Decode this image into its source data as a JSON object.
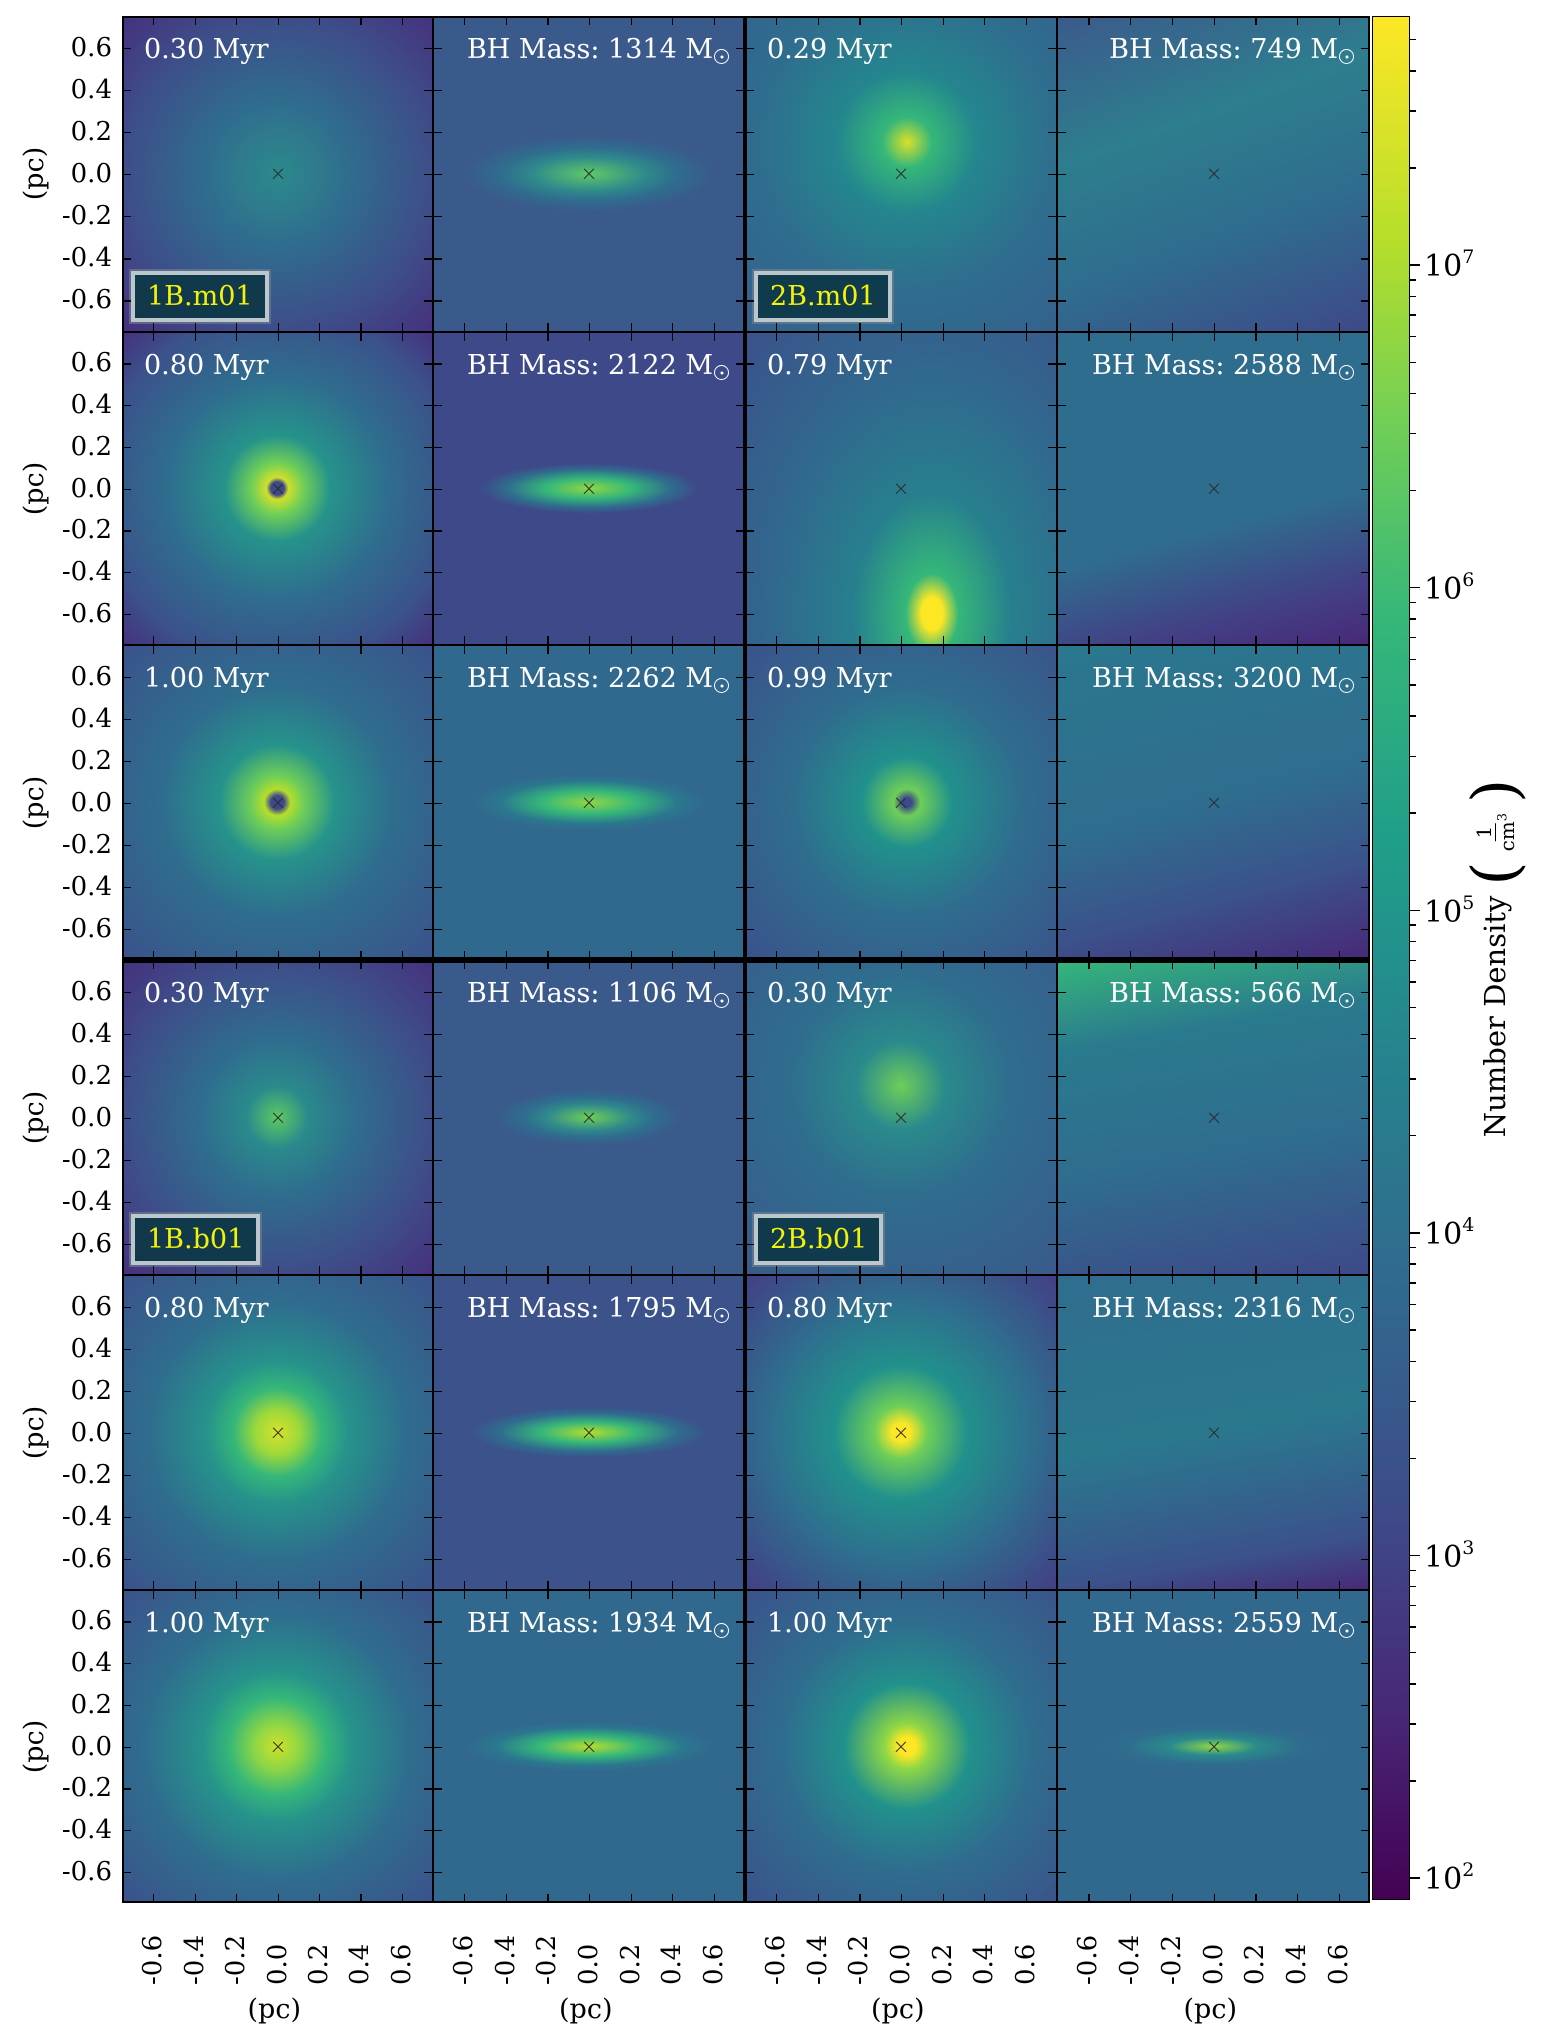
{
  "figure": {
    "panels": [
      [
        {
          "label": "0.30 Myr",
          "kind": "time",
          "sim": "1B.m01"
        },
        {
          "label": "BH Mass: 1314 M",
          "kind": "mass"
        },
        {
          "label": "0.29 Myr",
          "kind": "time",
          "sim": "2B.m01"
        },
        {
          "label": "BH Mass: 749 M",
          "kind": "mass"
        }
      ],
      [
        {
          "label": "0.80 Myr",
          "kind": "time"
        },
        {
          "label": "BH Mass: 2122 M",
          "kind": "mass"
        },
        {
          "label": "0.79 Myr",
          "kind": "time"
        },
        {
          "label": "BH Mass: 2588 M",
          "kind": "mass"
        }
      ],
      [
        {
          "label": "1.00 Myr",
          "kind": "time"
        },
        {
          "label": "BH Mass: 2262 M",
          "kind": "mass"
        },
        {
          "label": "0.99 Myr",
          "kind": "time"
        },
        {
          "label": "BH Mass: 3200 M",
          "kind": "mass"
        }
      ],
      [
        {
          "label": "0.30 Myr",
          "kind": "time",
          "sim": "1B.b01"
        },
        {
          "label": "BH Mass: 1106 M",
          "kind": "mass"
        },
        {
          "label": "0.30 Myr",
          "kind": "time",
          "sim": "2B.b01"
        },
        {
          "label": "BH Mass: 566 M",
          "kind": "mass"
        }
      ],
      [
        {
          "label": "0.80 Myr",
          "kind": "time"
        },
        {
          "label": "BH Mass: 1795 M",
          "kind": "mass"
        },
        {
          "label": "0.80 Myr",
          "kind": "time"
        },
        {
          "label": "BH Mass: 2316 M",
          "kind": "mass"
        }
      ],
      [
        {
          "label": "1.00 Myr",
          "kind": "time"
        },
        {
          "label": "BH Mass: 1934 M",
          "kind": "mass"
        },
        {
          "label": "1.00 Myr",
          "kind": "time"
        },
        {
          "label": "BH Mass: 2559 M",
          "kind": "mass"
        }
      ]
    ],
    "mass_unit_symbol": "sun-symbol",
    "bh_marker": "x",
    "y_ticks": [
      "0.6",
      "0.4",
      "0.2",
      "0.0",
      "-0.2",
      "-0.4",
      "-0.6"
    ],
    "x_ticks": [
      "-0.6",
      "-0.4",
      "-0.2",
      "0.0",
      "0.2",
      "0.4",
      "0.6"
    ],
    "axis_label": "(pc)",
    "axis_range": [
      -0.75,
      0.75
    ],
    "colorbar": {
      "title": "Number Density",
      "unit_numerator": "1",
      "unit_denominator": "cm",
      "unit_exponent": "3",
      "scale": "log",
      "range_exponent": [
        1.93,
        7.77
      ],
      "ticks": [
        {
          "base": "10",
          "exp": "2",
          "value": 2
        },
        {
          "base": "10",
          "exp": "3",
          "value": 3
        },
        {
          "base": "10",
          "exp": "4",
          "value": 4
        },
        {
          "base": "10",
          "exp": "5",
          "value": 5
        },
        {
          "base": "10",
          "exp": "6",
          "value": 6
        },
        {
          "base": "10",
          "exp": "7",
          "value": 7
        }
      ],
      "colormap": "viridis",
      "colors": [
        "#440154",
        "#482878",
        "#3e4989",
        "#31688e",
        "#26828e",
        "#1f9e89",
        "#35b779",
        "#6ece58",
        "#b5de2b",
        "#fde725"
      ]
    },
    "sim_label_color": "#f2f20b"
  }
}
